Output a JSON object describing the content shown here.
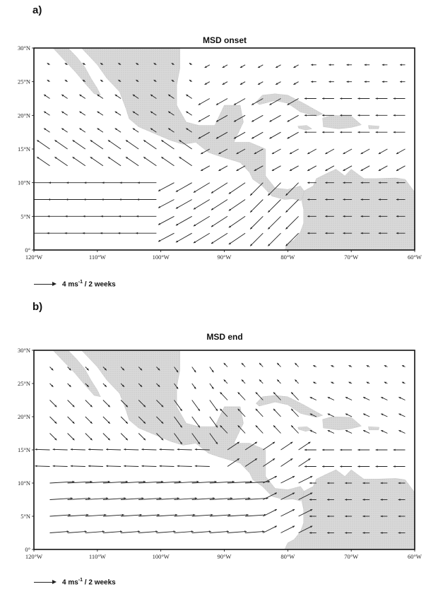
{
  "panels": [
    {
      "letter": "a)",
      "title": "MSD onset",
      "lat_labels": [
        "30°N",
        "25°N",
        "20°N",
        "15°N",
        "10°N",
        "5°N",
        "0°"
      ],
      "lon_labels": [
        "120°W",
        "110°W",
        "100°W",
        "90°W",
        "80°W",
        "70°W",
        "60°W"
      ],
      "legend": {
        "magnitude": "4 ms",
        "exponent": "-1",
        "suffix": " / 2 weeks"
      },
      "map_type": "wind anomaly vector field over land-shaded map",
      "lon_range": [
        -120,
        -60
      ],
      "lat_range": [
        0,
        30
      ],
      "land_color": "#d9d9d9",
      "vector_color": "#222222"
    },
    {
      "letter": "b)",
      "title": "MSD end",
      "lat_labels": [
        "30°N",
        "25°N",
        "20°N",
        "15°N",
        "10°N",
        "5°N",
        "0°"
      ],
      "lon_labels": [
        "120°W",
        "110°W",
        "100°W",
        "90°W",
        "80°W",
        "70°W",
        "60°W"
      ],
      "legend": {
        "magnitude": "4 ms",
        "exponent": "-1",
        "suffix": " / 2 weeks"
      },
      "map_type": "wind anomaly vector field over land-shaded map",
      "lon_range": [
        -120,
        -60
      ],
      "lat_range": [
        0,
        30
      ],
      "land_color": "#d9d9d9",
      "vector_color": "#222222"
    }
  ]
}
